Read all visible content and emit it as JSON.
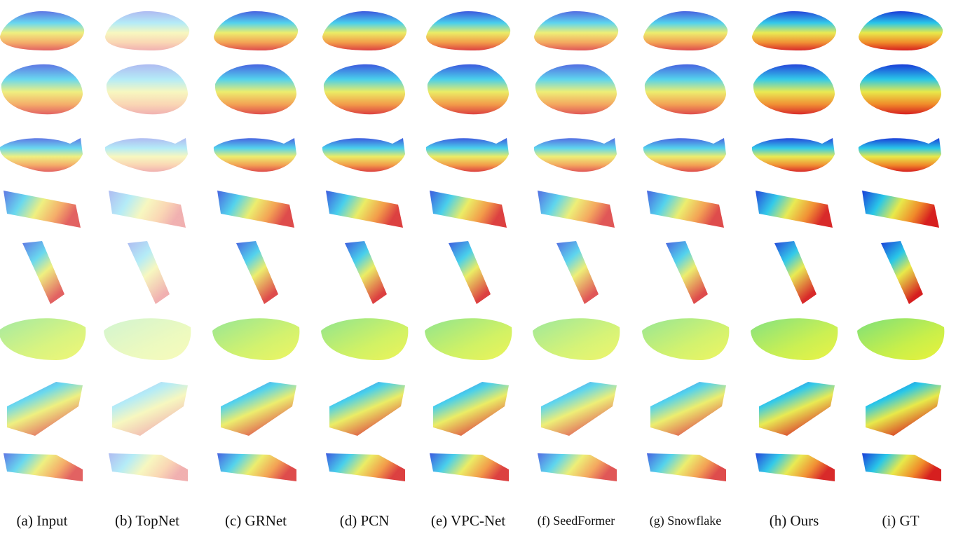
{
  "figure": {
    "labels": [
      "(a) Input",
      "(b) TopNet",
      "(c) GRNet",
      "(d) PCN",
      "(e) VPC-Net",
      "(f) SeedFormer",
      "(g) Snowflake",
      "(h) Ours",
      "(i) GT"
    ]
  }
}
